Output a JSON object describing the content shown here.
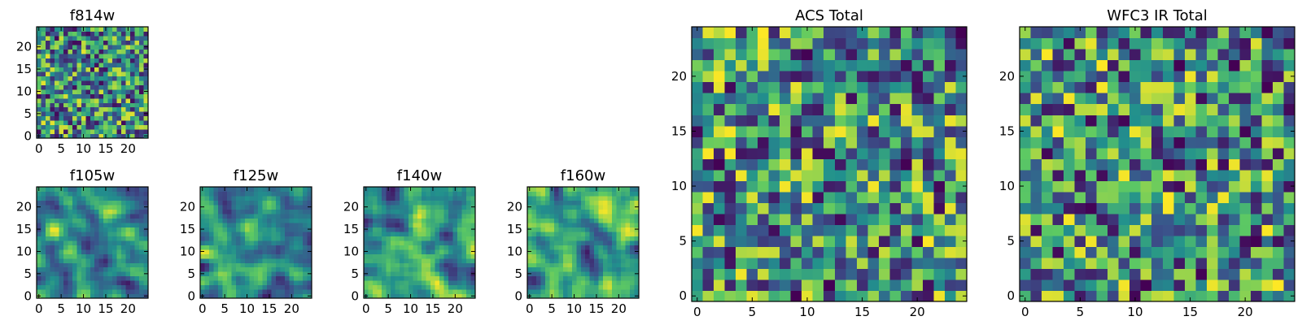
{
  "colors": {
    "colormap": [
      "#440154",
      "#3b528b",
      "#21908d",
      "#5dc963",
      "#fde725"
    ],
    "axis": "#000000",
    "background": "#ffffff"
  },
  "chart_data": [
    {
      "type": "heatmap",
      "title": "f814w",
      "colormap": "viridis",
      "grid": false,
      "xlim": [
        -0.5,
        24.5
      ],
      "ylim": [
        -0.5,
        24.5
      ],
      "xticks": [
        "0",
        "5",
        "10",
        "15",
        "20"
      ],
      "yticks": [
        "0",
        "5",
        "10",
        "15",
        "20"
      ]
    },
    {
      "type": "heatmap",
      "title": "f105w",
      "colormap": "viridis",
      "grid": false,
      "xlim": [
        -0.5,
        24.5
      ],
      "ylim": [
        -0.5,
        24.5
      ],
      "xticks": [
        "0",
        "5",
        "10",
        "15",
        "20"
      ],
      "yticks": [
        "0",
        "5",
        "10",
        "15",
        "20"
      ]
    },
    {
      "type": "heatmap",
      "title": "f125w",
      "colormap": "viridis",
      "grid": false,
      "xlim": [
        -0.5,
        24.5
      ],
      "ylim": [
        -0.5,
        24.5
      ],
      "xticks": [
        "0",
        "5",
        "10",
        "15",
        "20"
      ],
      "yticks": [
        "0",
        "5",
        "10",
        "15",
        "20"
      ]
    },
    {
      "type": "heatmap",
      "title": "f140w",
      "colormap": "viridis",
      "grid": false,
      "xlim": [
        -0.5,
        24.5
      ],
      "ylim": [
        -0.5,
        24.5
      ],
      "xticks": [
        "0",
        "5",
        "10",
        "15",
        "20"
      ],
      "yticks": [
        "0",
        "5",
        "10",
        "15",
        "20"
      ]
    },
    {
      "type": "heatmap",
      "title": "f160w",
      "colormap": "viridis",
      "grid": false,
      "xlim": [
        -0.5,
        24.5
      ],
      "ylim": [
        -0.5,
        24.5
      ],
      "xticks": [
        "0",
        "5",
        "10",
        "15",
        "20"
      ],
      "yticks": [
        "0",
        "5",
        "10",
        "15",
        "20"
      ]
    },
    {
      "type": "heatmap",
      "title": "ACS Total",
      "colormap": "viridis",
      "grid": false,
      "xlim": [
        -0.5,
        24.5
      ],
      "ylim": [
        -0.5,
        24.5
      ],
      "xticks": [
        "0",
        "5",
        "10",
        "15",
        "20"
      ],
      "yticks": [
        "0",
        "5",
        "10",
        "15",
        "20"
      ]
    },
    {
      "type": "heatmap",
      "title": "WFC3 IR Total",
      "colormap": "viridis",
      "grid": false,
      "xlim": [
        -0.5,
        24.5
      ],
      "ylim": [
        -0.5,
        24.5
      ],
      "xticks": [
        "0",
        "5",
        "10",
        "15",
        "20"
      ],
      "yticks": [
        "0",
        "5",
        "10",
        "15",
        "20"
      ]
    }
  ]
}
